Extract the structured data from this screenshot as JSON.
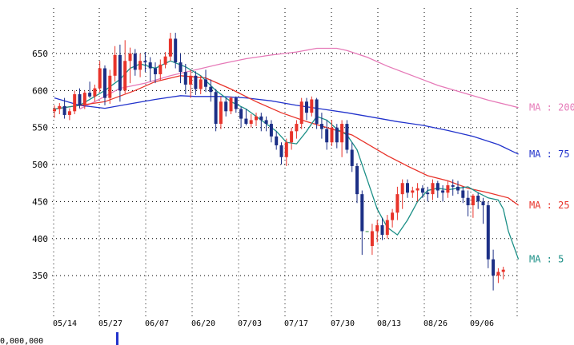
{
  "chart_data": {
    "type": "candlestick",
    "title": "",
    "xlabel": "",
    "ylabel": "",
    "ylim": [
      330,
      700
    ],
    "grid": true,
    "y_ticks": [
      "650",
      "600",
      "550",
      "500",
      "450",
      "400",
      "350"
    ],
    "x_ticks": [
      "05/14",
      "05/27",
      "06/07",
      "06/20",
      "07/03",
      "07/17",
      "07/30",
      "08/13",
      "08/26",
      "09/06"
    ],
    "bottom_partial_text": "0,000,000",
    "colors": {
      "up": "#e8332a",
      "down": "#1c2f86",
      "flat": "#2d8a3a",
      "ma5": "#1b8f86",
      "ma25": "#e8332a",
      "ma75": "#2233cc",
      "ma200": "#e67ab8"
    },
    "ma_labels": [
      {
        "key": "ma200",
        "text": "MA : 200",
        "color": "#e67ab8",
        "value": 577
      },
      {
        "key": "ma75",
        "text": "MA : 75",
        "color": "#2233cc",
        "value": 514
      },
      {
        "key": "ma25",
        "text": "MA : 25",
        "color": "#e8332a",
        "value": 445
      },
      {
        "key": "ma5",
        "text": "MA : 5",
        "color": "#1b8f86",
        "value": 372
      }
    ],
    "candles": [
      [
        572,
        580,
        563,
        575
      ],
      [
        575,
        583,
        568,
        579
      ],
      [
        579,
        590,
        562,
        567
      ],
      [
        567,
        576,
        560,
        572
      ],
      [
        572,
        600,
        568,
        595
      ],
      [
        595,
        603,
        576,
        580
      ],
      [
        580,
        600,
        575,
        597
      ],
      [
        597,
        612,
        590,
        592
      ],
      [
        592,
        608,
        585,
        603
      ],
      [
        603,
        640,
        598,
        630
      ],
      [
        630,
        634,
        580,
        590
      ],
      [
        590,
        628,
        582,
        620
      ],
      [
        620,
        660,
        612,
        648
      ],
      [
        648,
        662,
        585,
        600
      ],
      [
        600,
        668,
        596,
        640
      ],
      [
        640,
        658,
        610,
        650
      ],
      [
        650,
        656,
        620,
        628
      ],
      [
        628,
        650,
        618,
        640
      ],
      [
        640,
        652,
        625,
        638
      ],
      [
        638,
        645,
        612,
        630
      ],
      [
        630,
        638,
        610,
        622
      ],
      [
        622,
        642,
        614,
        635
      ],
      [
        635,
        652,
        630,
        646
      ],
      [
        646,
        678,
        640,
        670
      ],
      [
        670,
        678,
        630,
        638
      ],
      [
        638,
        650,
        610,
        625
      ],
      [
        625,
        636,
        595,
        608
      ],
      [
        608,
        628,
        590,
        620
      ],
      [
        620,
        626,
        594,
        602
      ],
      [
        602,
        620,
        595,
        615
      ],
      [
        615,
        628,
        598,
        605
      ],
      [
        605,
        615,
        585,
        598
      ],
      [
        598,
        602,
        545,
        555
      ],
      [
        555,
        592,
        548,
        585
      ],
      [
        585,
        590,
        565,
        572
      ],
      [
        572,
        592,
        568,
        590
      ],
      [
        590,
        592,
        570,
        575
      ],
      [
        575,
        578,
        550,
        562
      ],
      [
        562,
        575,
        553,
        555
      ],
      [
        555,
        568,
        550,
        560
      ],
      [
        560,
        570,
        552,
        565
      ],
      [
        565,
        570,
        545,
        560
      ],
      [
        560,
        565,
        545,
        555
      ],
      [
        555,
        560,
        530,
        538
      ],
      [
        538,
        545,
        520,
        526
      ],
      [
        526,
        530,
        500,
        510
      ],
      [
        510,
        535,
        498,
        530
      ],
      [
        530,
        550,
        520,
        545
      ],
      [
        545,
        560,
        535,
        555
      ],
      [
        555,
        590,
        548,
        585
      ],
      [
        585,
        590,
        560,
        570
      ],
      [
        570,
        592,
        565,
        588
      ],
      [
        588,
        590,
        548,
        555
      ],
      [
        555,
        570,
        535,
        548
      ],
      [
        548,
        560,
        520,
        530
      ],
      [
        530,
        560,
        525,
        550
      ],
      [
        550,
        555,
        522,
        530
      ],
      [
        530,
        560,
        510,
        555
      ],
      [
        555,
        560,
        515,
        520
      ],
      [
        520,
        530,
        490,
        498
      ],
      [
        498,
        502,
        448,
        460
      ],
      [
        460,
        465,
        378,
        410
      ],
      [
        410,
        410,
        410,
        410
      ],
      [
        390,
        420,
        378,
        410
      ],
      [
        410,
        425,
        395,
        418
      ],
      [
        418,
        428,
        398,
        405
      ],
      [
        405,
        432,
        400,
        425
      ],
      [
        425,
        440,
        415,
        435
      ],
      [
        435,
        470,
        425,
        460
      ],
      [
        460,
        480,
        440,
        475
      ],
      [
        475,
        480,
        455,
        462
      ],
      [
        462,
        470,
        455,
        465
      ],
      [
        465,
        475,
        450,
        468
      ],
      [
        468,
        472,
        455,
        462
      ],
      [
        462,
        470,
        450,
        460
      ],
      [
        460,
        480,
        452,
        475
      ],
      [
        475,
        478,
        455,
        465
      ],
      [
        465,
        472,
        450,
        462
      ],
      [
        462,
        478,
        455,
        472
      ],
      [
        472,
        480,
        458,
        470
      ],
      [
        470,
        478,
        460,
        465
      ],
      [
        465,
        470,
        448,
        455
      ],
      [
        455,
        465,
        430,
        445
      ],
      [
        445,
        460,
        428,
        458
      ],
      [
        458,
        462,
        440,
        450
      ],
      [
        450,
        455,
        420,
        445
      ],
      [
        445,
        450,
        360,
        372
      ],
      [
        372,
        385,
        330,
        350
      ],
      [
        350,
        360,
        340,
        355
      ],
      [
        355,
        362,
        345,
        358
      ]
    ],
    "ma5": [
      [
        0,
        575
      ],
      [
        5,
        580
      ],
      [
        10,
        600
      ],
      [
        13,
        615
      ],
      [
        15,
        630
      ],
      [
        17,
        636
      ],
      [
        20,
        630
      ],
      [
        23,
        640
      ],
      [
        26,
        632
      ],
      [
        29,
        620
      ],
      [
        32,
        600
      ],
      [
        35,
        585
      ],
      [
        38,
        575
      ],
      [
        41,
        560
      ],
      [
        44,
        545
      ],
      [
        46,
        530
      ],
      [
        48,
        528
      ],
      [
        50,
        545
      ],
      [
        52,
        565
      ],
      [
        54,
        560
      ],
      [
        56,
        548
      ],
      [
        58,
        540
      ],
      [
        60,
        520
      ],
      [
        62,
        480
      ],
      [
        64,
        440
      ],
      [
        66,
        415
      ],
      [
        68,
        405
      ],
      [
        70,
        425
      ],
      [
        72,
        450
      ],
      [
        74,
        465
      ],
      [
        76,
        468
      ],
      [
        78,
        466
      ],
      [
        80,
        468
      ],
      [
        82,
        470
      ],
      [
        84,
        462
      ],
      [
        86,
        455
      ],
      [
        88,
        452
      ],
      [
        89,
        440
      ],
      [
        90,
        410
      ],
      [
        92,
        372
      ]
    ],
    "ma25": [
      [
        0,
        575
      ],
      [
        10,
        585
      ],
      [
        16,
        600
      ],
      [
        20,
        612
      ],
      [
        25,
        620
      ],
      [
        30,
        617
      ],
      [
        35,
        602
      ],
      [
        40,
        585
      ],
      [
        45,
        570
      ],
      [
        50,
        558
      ],
      [
        55,
        548
      ],
      [
        59,
        540
      ],
      [
        62,
        528
      ],
      [
        66,
        512
      ],
      [
        70,
        498
      ],
      [
        74,
        485
      ],
      [
        78,
        478
      ],
      [
        82,
        468
      ],
      [
        86,
        462
      ],
      [
        90,
        455
      ],
      [
        92,
        445
      ]
    ],
    "ma75": [
      [
        0,
        590
      ],
      [
        5,
        580
      ],
      [
        10,
        576
      ],
      [
        15,
        582
      ],
      [
        20,
        588
      ],
      [
        25,
        593
      ],
      [
        28,
        592
      ],
      [
        33,
        592
      ],
      [
        38,
        590
      ],
      [
        43,
        586
      ],
      [
        48,
        580
      ],
      [
        53,
        575
      ],
      [
        58,
        570
      ],
      [
        63,
        564
      ],
      [
        68,
        558
      ],
      [
        73,
        553
      ],
      [
        78,
        546
      ],
      [
        83,
        538
      ],
      [
        88,
        527
      ],
      [
        92,
        514
      ]
    ],
    "ma200": [
      [
        5,
        575
      ],
      [
        8,
        585
      ],
      [
        13,
        603
      ],
      [
        18,
        610
      ],
      [
        23,
        620
      ],
      [
        28,
        628
      ],
      [
        33,
        636
      ],
      [
        38,
        643
      ],
      [
        43,
        648
      ],
      [
        48,
        652
      ],
      [
        52,
        657
      ],
      [
        56,
        657
      ],
      [
        58,
        654
      ],
      [
        62,
        645
      ],
      [
        66,
        633
      ],
      [
        71,
        620
      ],
      [
        76,
        607
      ],
      [
        81,
        597
      ],
      [
        86,
        587
      ],
      [
        92,
        577
      ]
    ]
  }
}
